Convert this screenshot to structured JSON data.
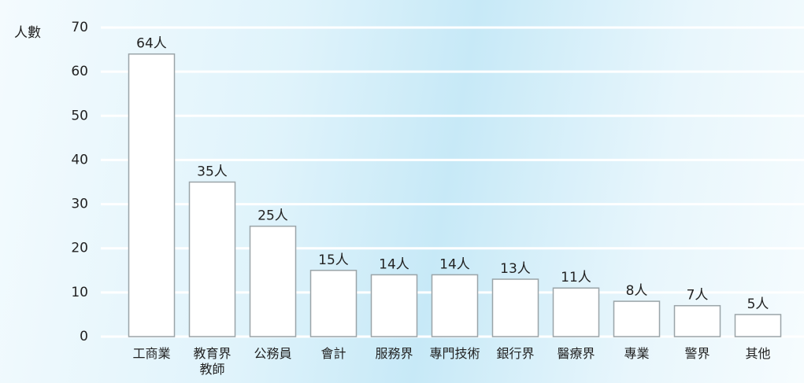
{
  "chart_data": {
    "type": "bar",
    "y_label": "人數",
    "categories": [
      "工商業",
      "教育界\n教師",
      "公務員",
      "會計",
      "服務界",
      "專門技術",
      "銀行界",
      "醫療界",
      "專業",
      "警界",
      "其他"
    ],
    "values": [
      64,
      35,
      25,
      15,
      14,
      14,
      13,
      11,
      8,
      7,
      5
    ],
    "value_labels": [
      "64人",
      "35人",
      "25人",
      "15人",
      "14人",
      "14人",
      "13人",
      "11人",
      "8人",
      "7人",
      "5人"
    ],
    "color": "#ffffff",
    "ylim": [
      0,
      70
    ],
    "yticks": [
      0,
      10,
      20,
      30,
      40,
      50,
      60,
      70
    ],
    "grid": true
  }
}
